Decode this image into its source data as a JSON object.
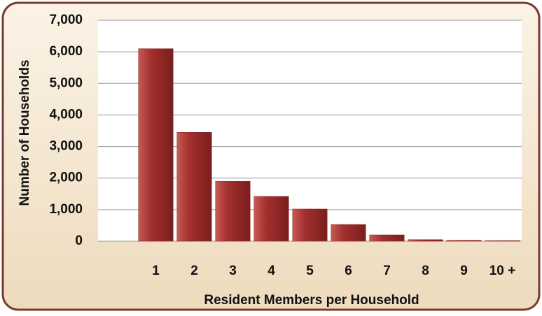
{
  "chart_data": {
    "type": "bar",
    "xlabel": "Resident Members per Household",
    "ylabel": "Number of Households",
    "categories": [
      null,
      "1",
      "2",
      "3",
      "4",
      "5",
      "6",
      "7",
      "8",
      "9",
      "10 +"
    ],
    "values": [
      null,
      6100,
      3450,
      1900,
      1420,
      1020,
      530,
      200,
      50,
      30,
      20
    ],
    "color": "#a3302e",
    "ylim": [
      0,
      7000
    ],
    "yticks": [
      0,
      {
        "value": 1000,
        "label": "1,000"
      },
      {
        "value": 2000,
        "label": "2,000"
      },
      {
        "value": 3000,
        "label": "3,000"
      },
      {
        "value": 4000,
        "label": "4,000"
      },
      {
        "value": 5000,
        "label": "5,000"
      },
      {
        "value": 6000,
        "label": "6,000"
      },
      {
        "value": 7000,
        "label": "7,000"
      }
    ],
    "grid": true
  }
}
